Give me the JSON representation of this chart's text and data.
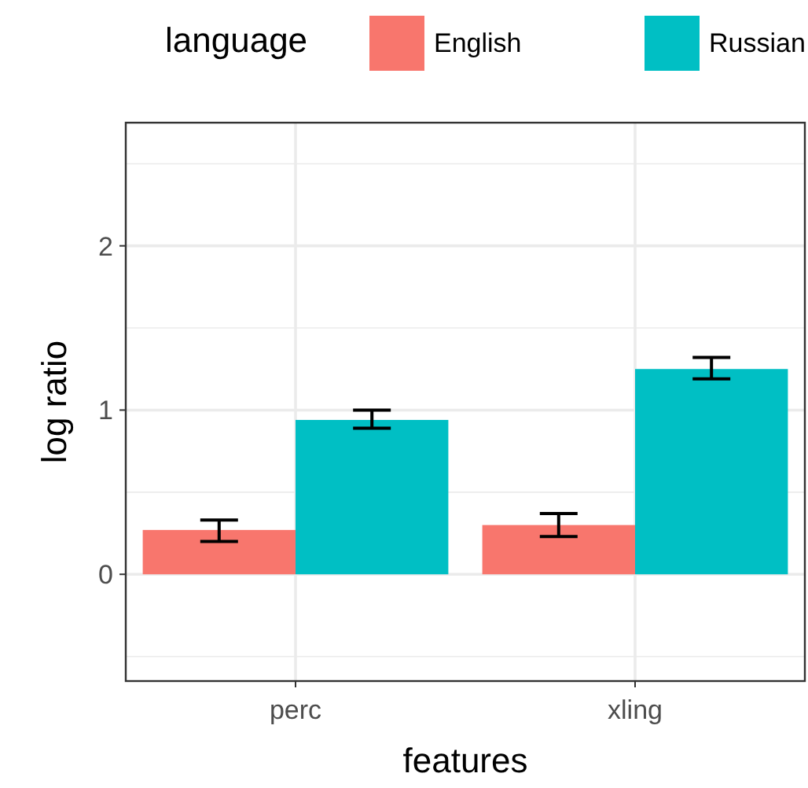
{
  "chart_data": {
    "type": "bar",
    "xlabel": "features",
    "ylabel": "log ratio",
    "legend_title": "language",
    "legend": "top",
    "categories": [
      "perc",
      "xling"
    ],
    "series": [
      {
        "name": "English",
        "color": "#f8766d",
        "values": [
          0.27,
          0.3
        ],
        "errors": [
          [
            0.2,
            0.33
          ],
          [
            0.23,
            0.37
          ]
        ]
      },
      {
        "name": "Russian",
        "color": "#00bfc4",
        "values": [
          0.94,
          1.25
        ],
        "errors": [
          [
            0.89,
            1.0
          ],
          [
            1.19,
            1.32
          ]
        ]
      }
    ],
    "ylim": [
      -0.65,
      2.75
    ],
    "yticks": [
      0,
      1,
      2
    ],
    "grid": true
  }
}
